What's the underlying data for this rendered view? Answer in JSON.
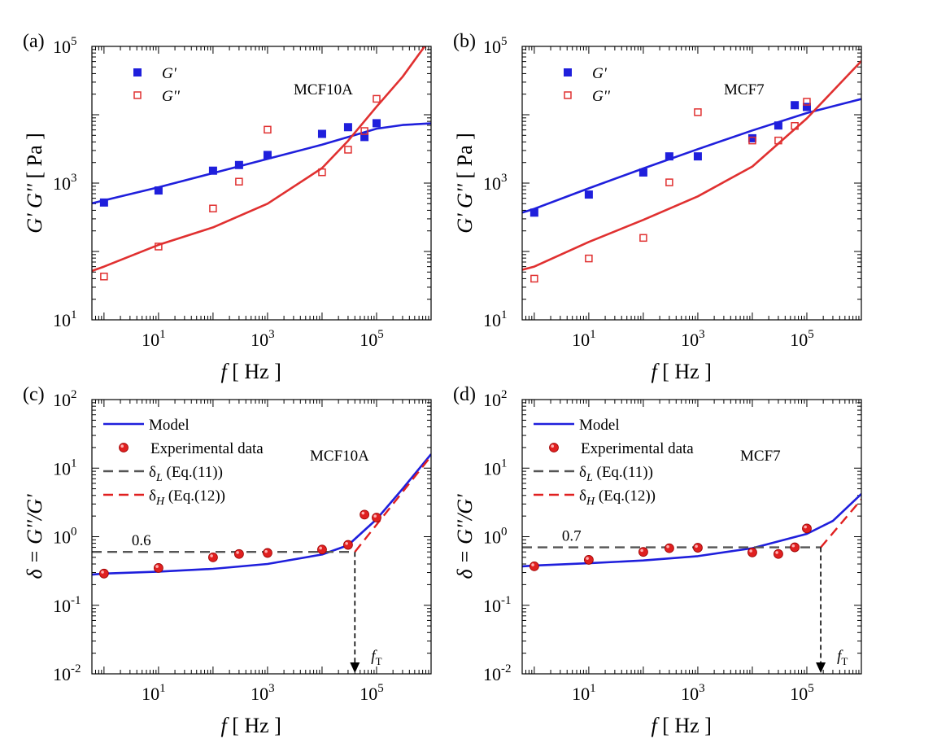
{
  "chart_data": [
    {
      "panel": "(a)",
      "type": "scatter",
      "cell_line": "MCF10A",
      "xlabel": "f",
      "xunit": "[ Hz ]",
      "ylabel": "G' G''",
      "yunit": "[ Pa ]",
      "xscale": "log",
      "yscale": "log",
      "xlim": [
        0.6,
        1000000
      ],
      "ylim": [
        10,
        100000
      ],
      "xticks": [
        "10^1",
        "10^3",
        "10^5"
      ],
      "yticks": [
        "10^1",
        "10^3",
        "10^5"
      ],
      "legend": {
        "placement": "top-left",
        "entries": [
          "G'",
          "G''"
        ]
      },
      "series": [
        {
          "name": "G'",
          "marker": "filled-square",
          "color": "#1f1fdc",
          "x": [
            1,
            10,
            100,
            300,
            1000,
            10000,
            30000,
            60000,
            100000
          ],
          "y": [
            520,
            780,
            1520,
            1840,
            2580,
            5250,
            6580,
            4720,
            7520
          ]
        },
        {
          "name": "G''",
          "marker": "open-square",
          "color": "#e03030",
          "x": [
            1,
            10,
            100,
            300,
            1000,
            10000,
            30000,
            60000,
            100000
          ],
          "y": [
            43,
            118,
            425,
            1050,
            6050,
            1440,
            3080,
            5780,
            17100
          ]
        }
      ],
      "fits": [
        {
          "label": "G' model",
          "color": "#1f1fdc",
          "x": [
            0.6,
            1,
            10,
            100,
            1000,
            10000,
            100000,
            300000,
            1000000
          ],
          "y": [
            505,
            560,
            870,
            1400,
            2260,
            3650,
            6250,
            7070,
            7470
          ]
        },
        {
          "label": "G'' model",
          "color": "#e03030",
          "x": [
            0.6,
            1,
            10,
            100,
            1000,
            10000,
            30000,
            100000,
            300000,
            1000000
          ],
          "y": [
            52,
            60,
            125,
            225,
            500,
            1660,
            4150,
            13100,
            36000,
            135000
          ]
        }
      ]
    },
    {
      "panel": "(b)",
      "type": "scatter",
      "cell_line": "MCF7",
      "xlabel": "f",
      "xunit": "[ Hz ]",
      "ylabel": "G' G''",
      "yunit": "[ Pa ]",
      "xscale": "log",
      "yscale": "log",
      "xlim": [
        0.6,
        1000000
      ],
      "ylim": [
        10,
        100000
      ],
      "xticks": [
        "10^1",
        "10^3",
        "10^5"
      ],
      "yticks": [
        "10^1",
        "10^3",
        "10^5"
      ],
      "legend": {
        "placement": "top-left",
        "entries": [
          "G'",
          "G''"
        ]
      },
      "series": [
        {
          "name": "G'",
          "marker": "filled-square",
          "color": "#1f1fdc",
          "x": [
            1,
            10,
            100,
            300,
            1000,
            10000,
            30000,
            60000,
            100000
          ],
          "y": [
            370,
            680,
            1430,
            2460,
            2460,
            4530,
            6960,
            13800,
            13000
          ]
        },
        {
          "name": "G''",
          "marker": "open-square",
          "color": "#e03030",
          "x": [
            1,
            10,
            100,
            300,
            1000,
            10000,
            30000,
            60000,
            100000
          ],
          "y": [
            40,
            79,
            158,
            1025,
            10900,
            4200,
            4200,
            6860,
            15500
          ]
        }
      ],
      "fits": [
        {
          "label": "G' model",
          "color": "#1f1fdc",
          "x": [
            0.6,
            1,
            10,
            100,
            1000,
            10000,
            100000,
            1000000
          ],
          "y": [
            370,
            420,
            840,
            1640,
            3140,
            5890,
            10600,
            17000
          ]
        },
        {
          "label": "G'' model",
          "color": "#e03030",
          "x": [
            0.6,
            1,
            10,
            100,
            1000,
            10000,
            100000,
            1000000
          ],
          "y": [
            54,
            60,
            138,
            290,
            640,
            1750,
            8830,
            61100
          ]
        }
      ]
    },
    {
      "panel": "(c)",
      "type": "scatter",
      "cell_line": "MCF10A",
      "xlabel": "f",
      "xunit": "[ Hz ]",
      "ylabel": "δ = G''/G'",
      "xscale": "log",
      "yscale": "log",
      "xlim": [
        0.6,
        1000000
      ],
      "ylim": [
        0.01,
        100
      ],
      "xticks": [
        "10^1",
        "10^3",
        "10^5"
      ],
      "yticks": [
        "10^-2",
        "10^-1",
        "10^0",
        "10^1",
        "10^2"
      ],
      "legend": {
        "placement": "top-left",
        "entries": [
          "Model",
          "Experimental data",
          "δL  (Eq.(11))",
          "δH  (Eq.(12))"
        ]
      },
      "series": [
        {
          "name": "Experimental data",
          "marker": "red-sphere",
          "color": "#e02020",
          "x": [
            1,
            10,
            100,
            300,
            1000,
            10000,
            30000,
            60000,
            100000
          ],
          "y": [
            0.29,
            0.35,
            0.5,
            0.56,
            0.58,
            0.65,
            0.76,
            2.1,
            1.9
          ]
        }
      ],
      "fits": [
        {
          "label": "Model",
          "color": "#1f1fdc",
          "x": [
            0.6,
            1,
            10,
            100,
            1000,
            10000,
            30000,
            100000,
            300000,
            1000000
          ],
          "y": [
            0.28,
            0.29,
            0.31,
            0.34,
            0.4,
            0.55,
            0.75,
            1.8,
            5.0,
            16.0
          ]
        },
        {
          "label": "δL  (Eq.(11))",
          "color": "#555555",
          "dashed": true,
          "x": [
            0.6,
            40000
          ],
          "y": [
            0.6,
            0.6
          ]
        },
        {
          "label": "δH  (Eq.(12))",
          "color": "#e02020",
          "dashed": true,
          "x": [
            40000,
            1000000
          ],
          "y": [
            0.6,
            15.0
          ]
        }
      ],
      "annotations": [
        {
          "text": "0.6",
          "x": 3,
          "y": 0.6
        },
        {
          "text": "f",
          "sub": "T",
          "x": 40000,
          "y": 0.01
        }
      ]
    },
    {
      "panel": "(d)",
      "type": "scatter",
      "cell_line": "MCF7",
      "xlabel": "f",
      "xunit": "[ Hz ]",
      "ylabel": "δ = G''/G'",
      "xscale": "log",
      "yscale": "log",
      "xlim": [
        0.6,
        1000000
      ],
      "ylim": [
        0.01,
        100
      ],
      "xticks": [
        "10^1",
        "10^3",
        "10^5"
      ],
      "yticks": [
        "10^-2",
        "10^-1",
        "10^0",
        "10^1",
        "10^2"
      ],
      "legend": {
        "placement": "top-left",
        "entries": [
          "Model",
          "Experimental data",
          "δL  (Eq.(11))",
          "δH  (Eq.(12))"
        ]
      },
      "series": [
        {
          "name": "Experimental data",
          "marker": "red-sphere",
          "color": "#e02020",
          "x": [
            1,
            10,
            100,
            300,
            1000,
            10000,
            30000,
            60000,
            100000
          ],
          "y": [
            0.37,
            0.46,
            0.6,
            0.68,
            0.69,
            0.59,
            0.56,
            0.7,
            1.32
          ]
        }
      ],
      "fits": [
        {
          "label": "Model",
          "color": "#1f1fdc",
          "x": [
            0.6,
            1,
            10,
            100,
            1000,
            10000,
            100000,
            300000,
            1000000
          ],
          "y": [
            0.37,
            0.38,
            0.41,
            0.45,
            0.52,
            0.68,
            1.1,
            1.7,
            4.2
          ]
        },
        {
          "label": "δL  (Eq.(11))",
          "color": "#555555",
          "dashed": true,
          "x": [
            0.6,
            180000
          ],
          "y": [
            0.7,
            0.7
          ]
        },
        {
          "label": "δH  (Eq.(12))",
          "color": "#e02020",
          "dashed": true,
          "x": [
            180000,
            1000000
          ],
          "y": [
            0.7,
            3.5
          ]
        }
      ],
      "annotations": [
        {
          "text": "0.7",
          "x": 3,
          "y": 0.7
        },
        {
          "text": "f",
          "sub": "T",
          "x": 180000,
          "y": 0.01
        }
      ]
    }
  ]
}
